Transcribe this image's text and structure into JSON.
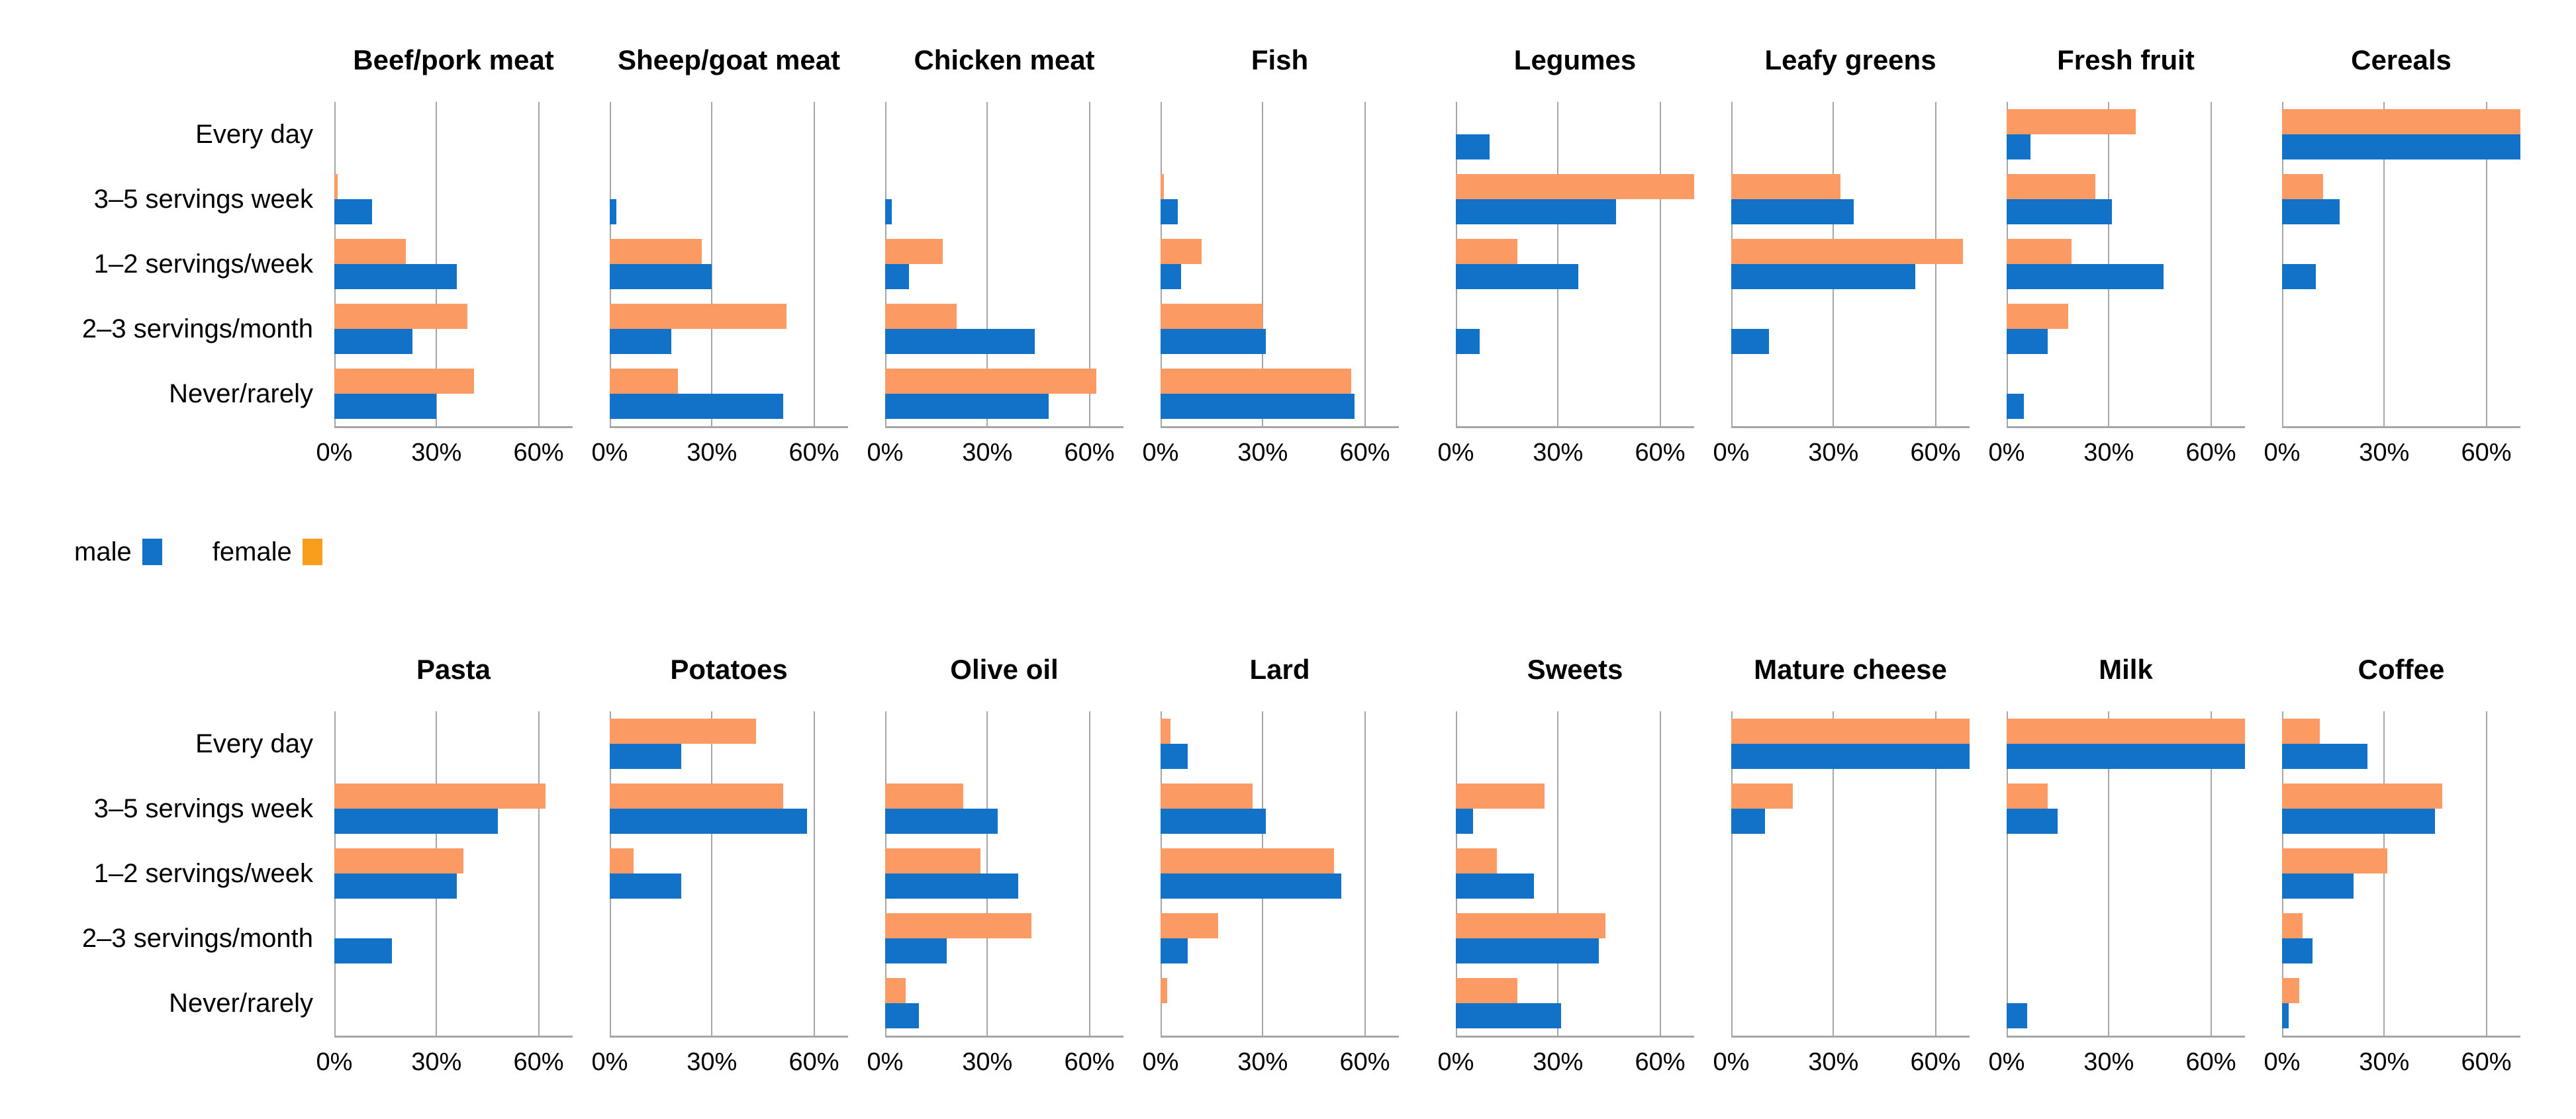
{
  "legend": {
    "male_label": "male",
    "female_label": "female"
  },
  "colors": {
    "male": "#1272c7",
    "female_bar": "#fc9a64",
    "female_legend": "#f99d1c",
    "gridline": "#a6a6a6",
    "axis": "#a6a6a6",
    "text": "#000000"
  },
  "chart_data": {
    "type": "bar",
    "orientation": "horizontal",
    "grid": true,
    "legend_position": "left, between chart rows",
    "series_names": [
      "male",
      "female"
    ],
    "categories": [
      "Every day",
      "3–5 servings week",
      "1–2 servings/week",
      "2–3 servings/month",
      "Never/rarely"
    ],
    "x_axis": {
      "tick_labels": [
        "0%",
        "30%",
        "60%"
      ],
      "tick_values": [
        0,
        30,
        60
      ],
      "max": 70,
      "unit": "%"
    },
    "rows": [
      [
        {
          "title": "Beef/pork meat",
          "female": [
            0,
            1,
            21,
            39,
            41
          ],
          "male": [
            0,
            11,
            36,
            23,
            30
          ]
        },
        {
          "title": "Sheep/goat meat",
          "female": [
            0,
            0,
            27,
            52,
            20
          ],
          "male": [
            0,
            2,
            30,
            18,
            51
          ]
        },
        {
          "title": "Chicken meat",
          "female": [
            0,
            0,
            17,
            21,
            62
          ],
          "male": [
            0,
            2,
            7,
            44,
            48
          ]
        },
        {
          "title": "Fish",
          "female": [
            0,
            1,
            12,
            30,
            56
          ],
          "male": [
            0,
            5,
            6,
            31,
            57
          ]
        },
        {
          "title": "Legumes",
          "female": [
            0,
            70,
            18,
            0,
            0
          ],
          "male": [
            10,
            47,
            36,
            7,
            0
          ]
        },
        {
          "title": "Leafy greens",
          "female": [
            0,
            32,
            68,
            0,
            0
          ],
          "male": [
            0,
            36,
            54,
            11,
            0
          ]
        },
        {
          "title": "Fresh fruit",
          "female": [
            38,
            26,
            19,
            18,
            0
          ],
          "male": [
            7,
            31,
            46,
            12,
            5
          ]
        },
        {
          "title": "Cereals",
          "female": [
            70,
            12,
            0,
            0,
            0
          ],
          "male": [
            70,
            17,
            10,
            0,
            0
          ]
        }
      ],
      [
        {
          "title": "Pasta",
          "female": [
            0,
            62,
            38,
            0,
            0
          ],
          "male": [
            0,
            48,
            36,
            17,
            0
          ]
        },
        {
          "title": "Potatoes",
          "female": [
            43,
            51,
            7,
            0,
            0
          ],
          "male": [
            21,
            58,
            21,
            0,
            0
          ]
        },
        {
          "title": "Olive oil",
          "female": [
            0,
            23,
            28,
            43,
            6
          ],
          "male": [
            0,
            33,
            39,
            18,
            10
          ]
        },
        {
          "title": "Lard",
          "female": [
            3,
            27,
            51,
            17,
            2
          ],
          "male": [
            8,
            31,
            53,
            8,
            0
          ]
        },
        {
          "title": "Sweets",
          "female": [
            0,
            26,
            12,
            44,
            18
          ],
          "male": [
            0,
            5,
            23,
            42,
            31
          ]
        },
        {
          "title": "Mature cheese",
          "female": [
            70,
            18,
            0,
            0,
            0
          ],
          "male": [
            70,
            10,
            0,
            0,
            0
          ]
        },
        {
          "title": "Milk",
          "female": [
            70,
            12,
            0,
            0,
            0
          ],
          "male": [
            70,
            15,
            0,
            0,
            6
          ]
        },
        {
          "title": "Coffee",
          "female": [
            11,
            47,
            31,
            6,
            5
          ],
          "male": [
            25,
            45,
            21,
            9,
            2
          ]
        }
      ]
    ]
  }
}
